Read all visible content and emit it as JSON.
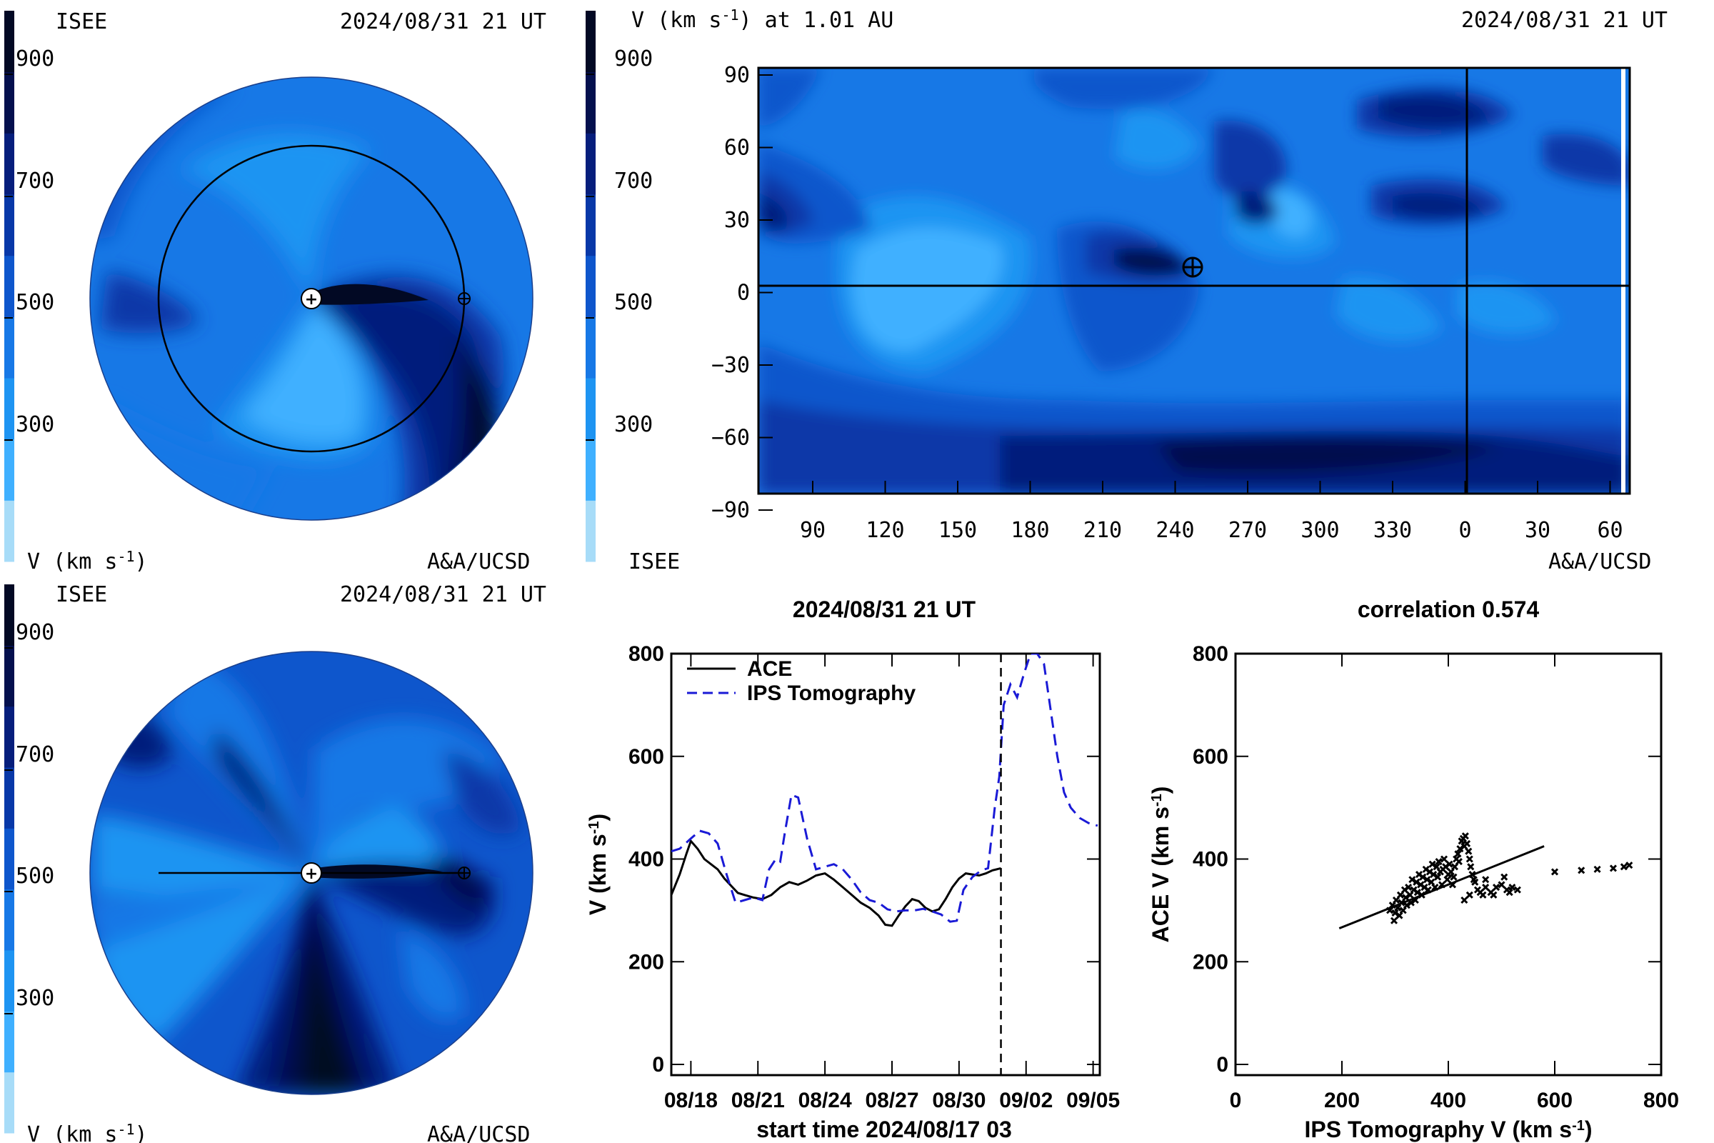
{
  "palette": [
    "#a7dcf8",
    "#3fb0ff",
    "#1e94f2",
    "#1778e6",
    "#0e56cc",
    "#0838a8",
    "#061e7c",
    "#04104e",
    "#020924"
  ],
  "colorbar_labels": [
    "900",
    "700",
    "500",
    "300"
  ],
  "panel_tl": {
    "org": "ISEE",
    "date": "2024/08/31 21 UT",
    "unit_label": "V (km s",
    "unit_sup": "-1",
    "unit_close": ")",
    "credit": "A&A/UCSD",
    "view": "ecliptic"
  },
  "panel_tr": {
    "title": "V (km s",
    "title_sup": "-1",
    "title_tail": ") at 1.01 AU",
    "date": "2024/08/31 21 UT",
    "org": "ISEE",
    "credit": "A&A/UCSD",
    "lat_ticks": [
      "90",
      "60",
      "30",
      "0",
      "−30",
      "−60",
      "−90"
    ],
    "lon_ticks": [
      "90",
      "120",
      "150",
      "180",
      "210",
      "240",
      "270",
      "300",
      "330",
      "0",
      "30",
      "60"
    ]
  },
  "panel_bl": {
    "org": "ISEE",
    "date": "2024/08/31 21 UT",
    "unit_label": "V (km s",
    "unit_sup": "-1",
    "unit_close": ")",
    "credit": "A&A/UCSD",
    "view": "meridional"
  },
  "chart_data": [
    {
      "type": "line",
      "title": "2024/08/31 21 UT",
      "xlabel": "start time 2024/08/17 03",
      "ylabel": "V (km s",
      "ylabel_sup": "-1",
      "ylabel_close": ")",
      "ylim": [
        0,
        800
      ],
      "yticks": [
        "0",
        "200",
        "400",
        "600",
        "800"
      ],
      "xticks": [
        "08/18",
        "08/21",
        "08/24",
        "08/27",
        "08/30",
        "09/02",
        "09/05"
      ],
      "xtick_days": [
        18,
        21,
        24,
        27,
        30,
        33,
        36
      ],
      "xlim_days": [
        17.125,
        36.3
      ],
      "now_day": 31.875,
      "series": [
        {
          "name": "ACE",
          "color": "#000000",
          "dash": "solid",
          "x": [
            17.125,
            17.5,
            17.8,
            18.0,
            18.3,
            18.6,
            18.9,
            19.2,
            19.5,
            19.8,
            20.1,
            20.4,
            20.8,
            21.2,
            21.6,
            22.0,
            22.4,
            22.8,
            23.2,
            23.6,
            24.0,
            24.4,
            24.8,
            25.2,
            25.6,
            26.0,
            26.4,
            26.7,
            27.0,
            27.3,
            27.6,
            27.9,
            28.2,
            28.5,
            28.8,
            29.1,
            29.4,
            29.7,
            30.0,
            30.3,
            30.6,
            30.9,
            31.2,
            31.5,
            31.875
          ],
          "y": [
            330,
            370,
            410,
            435,
            420,
            400,
            390,
            380,
            362,
            348,
            334,
            330,
            325,
            322,
            330,
            345,
            355,
            350,
            358,
            368,
            372,
            360,
            345,
            330,
            315,
            305,
            290,
            272,
            270,
            290,
            308,
            322,
            318,
            305,
            298,
            302,
            322,
            345,
            362,
            372,
            370,
            368,
            372,
            378,
            382
          ]
        },
        {
          "name": "IPS Tomography",
          "color": "#1a1ad6",
          "dash": "dashed",
          "x": [
            17.125,
            17.5,
            18.0,
            18.4,
            18.8,
            19.2,
            19.6,
            20.0,
            20.4,
            20.8,
            21.2,
            21.5,
            21.8,
            22.0,
            22.2,
            22.5,
            22.8,
            23.2,
            23.6,
            24.0,
            24.4,
            24.8,
            25.2,
            25.6,
            26.0,
            26.4,
            26.8,
            27.2,
            27.6,
            28.0,
            28.4,
            28.8,
            29.2,
            29.6,
            29.9,
            30.2,
            30.6,
            31.0,
            31.3,
            31.6,
            31.8,
            32.0,
            32.3,
            32.6,
            32.9,
            33.2,
            33.5,
            33.8,
            34.1,
            34.4,
            34.7,
            35.0,
            35.4,
            35.8,
            36.2
          ],
          "y": [
            415,
            420,
            440,
            455,
            450,
            430,
            370,
            315,
            320,
            325,
            320,
            380,
            400,
            395,
            450,
            525,
            520,
            440,
            380,
            385,
            390,
            380,
            360,
            335,
            320,
            315,
            302,
            298,
            300,
            300,
            303,
            298,
            292,
            278,
            280,
            340,
            365,
            378,
            382,
            500,
            560,
            700,
            740,
            715,
            760,
            800,
            800,
            780,
            690,
            600,
            530,
            500,
            480,
            470,
            465
          ]
        }
      ],
      "legend": "top-left"
    },
    {
      "type": "scatter",
      "title": "correlation 0.574",
      "xlabel": "IPS Tomography V (km s",
      "xlabel_sup": "-1",
      "xlabel_close": ")",
      "ylabel": "ACE V (km s",
      "ylabel_sup": "-1",
      "ylabel_close": ")",
      "xlim": [
        0,
        800
      ],
      "ylim": [
        0,
        800
      ],
      "xticks": [
        "0",
        "200",
        "400",
        "600",
        "800"
      ],
      "yticks": [
        "0",
        "200",
        "400",
        "600",
        "800"
      ],
      "fit_line": [
        [
          195,
          265
        ],
        [
          580,
          425
        ]
      ],
      "points": [
        [
          290,
          300
        ],
        [
          295,
          310
        ],
        [
          298,
          280
        ],
        [
          300,
          295
        ],
        [
          302,
          320
        ],
        [
          305,
          305
        ],
        [
          308,
          290
        ],
        [
          310,
          330
        ],
        [
          312,
          315
        ],
        [
          315,
          300
        ],
        [
          318,
          340
        ],
        [
          320,
          325
        ],
        [
          322,
          310
        ],
        [
          325,
          345
        ],
        [
          328,
          330
        ],
        [
          330,
          315
        ],
        [
          332,
          360
        ],
        [
          335,
          340
        ],
        [
          338,
          320
        ],
        [
          340,
          355
        ],
        [
          342,
          335
        ],
        [
          345,
          370
        ],
        [
          348,
          350
        ],
        [
          350,
          330
        ],
        [
          352,
          365
        ],
        [
          355,
          345
        ],
        [
          358,
          380
        ],
        [
          360,
          360
        ],
        [
          362,
          340
        ],
        [
          365,
          375
        ],
        [
          368,
          355
        ],
        [
          370,
          390
        ],
        [
          372,
          370
        ],
        [
          375,
          345
        ],
        [
          378,
          385
        ],
        [
          380,
          365
        ],
        [
          382,
          395
        ],
        [
          385,
          375
        ],
        [
          388,
          350
        ],
        [
          390,
          380
        ],
        [
          392,
          400
        ],
        [
          395,
          385
        ],
        [
          398,
          360
        ],
        [
          400,
          370
        ],
        [
          402,
          390
        ],
        [
          405,
          375
        ],
        [
          408,
          350
        ],
        [
          410,
          365
        ],
        [
          412,
          385
        ],
        [
          415,
          400
        ],
        [
          418,
          410
        ],
        [
          420,
          395
        ],
        [
          422,
          420
        ],
        [
          425,
          435
        ],
        [
          428,
          440
        ],
        [
          430,
          425
        ],
        [
          432,
          445
        ],
        [
          435,
          430
        ],
        [
          438,
          415
        ],
        [
          440,
          400
        ],
        [
          442,
          385
        ],
        [
          445,
          370
        ],
        [
          448,
          360
        ],
        [
          450,
          355
        ],
        [
          455,
          340
        ],
        [
          460,
          335
        ],
        [
          465,
          330
        ],
        [
          470,
          345
        ],
        [
          480,
          335
        ],
        [
          490,
          345
        ],
        [
          500,
          350
        ],
        [
          505,
          365
        ],
        [
          510,
          340
        ],
        [
          515,
          335
        ],
        [
          520,
          345
        ],
        [
          530,
          340
        ],
        [
          470,
          360
        ],
        [
          485,
          330
        ],
        [
          440,
          330
        ],
        [
          430,
          320
        ],
        [
          600,
          375
        ],
        [
          650,
          378
        ],
        [
          680,
          380
        ],
        [
          710,
          382
        ],
        [
          730,
          385
        ],
        [
          740,
          388
        ]
      ]
    }
  ]
}
